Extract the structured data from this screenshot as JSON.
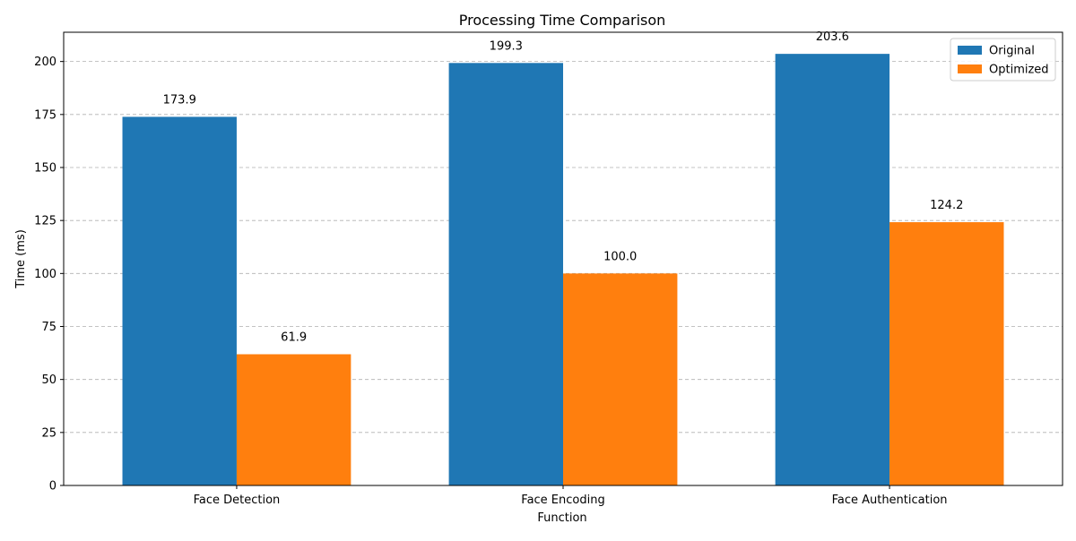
{
  "chart_data": {
    "type": "bar",
    "title": "Processing Time Comparison",
    "xlabel": "Function",
    "ylabel": "Time (ms)",
    "categories": [
      "Face Detection",
      "Face Encoding",
      "Face Authentication"
    ],
    "series": [
      {
        "name": "Original",
        "values": [
          173.9,
          199.3,
          203.6
        ],
        "labels": [
          "173.9",
          "199.3",
          "203.6"
        ],
        "color": "#1f77b4"
      },
      {
        "name": "Optimized",
        "values": [
          61.9,
          100.0,
          124.2
        ],
        "labels": [
          "61.9",
          "100.0",
          "124.2"
        ],
        "color": "#ff7f0e"
      }
    ],
    "ylim": [
      0,
      213.8
    ],
    "yticks": [
      0,
      25,
      50,
      75,
      100,
      125,
      150,
      175,
      200
    ],
    "ytick_labels": [
      "0",
      "25",
      "50",
      "75",
      "100",
      "125",
      "150",
      "175",
      "200"
    ],
    "grid": "y-dashed",
    "legend_position": "top-right"
  }
}
